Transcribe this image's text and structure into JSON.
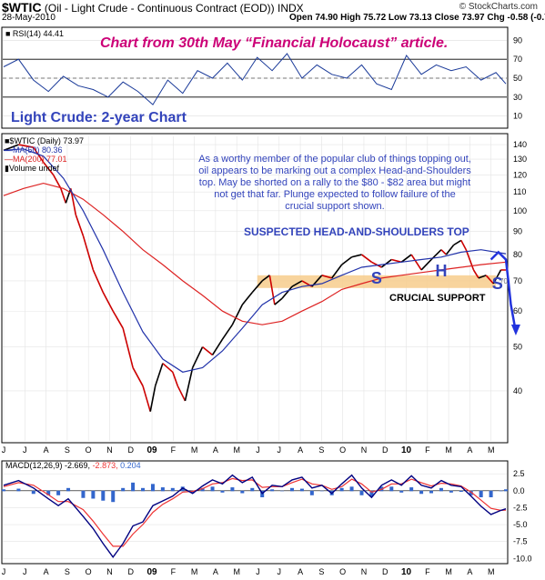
{
  "header": {
    "symbol": "$WTIC",
    "description": "(Oil - Light Crude - Continuous Contract (EOD)) INDX",
    "date": "28-May-2010",
    "ohlc": "Open 74.90 High 75.72 Low 73.13 Close 73.97 Chg -0.58 (-0.78%)",
    "brand": "© StockCharts.com"
  },
  "banner": "Chart from 30th May “Financial Holocaust” article.",
  "subtitle": "Light Crude: 2-year Chart",
  "commentary": [
    "As a worthy member of the popular club of things topping out,",
    "oil appears to be marking out a complex Head-and-Shoulders",
    "top. May be shorted on a rally to the $80 - $82 area but might",
    "not get that far. Plunge expected to follow failure of the",
    "crucial support shown."
  ],
  "pattern_label": "SUSPECTED HEAD-AND-SHOULDERS TOP",
  "support_label": "CRUCIAL SUPPORT",
  "hs_labels": [
    "S",
    "H",
    "S"
  ],
  "support_tag": "70",
  "colors": {
    "banner": "#cc0077",
    "annotation": "#3344bb",
    "price_up": "#000000",
    "price_down": "#cc0000",
    "ma50": "#2233aa",
    "ma200": "#dd2222",
    "support_band": "#f7cc8c",
    "arrow": "#2233dd",
    "macd_line": "#000080",
    "signal_line": "#ee3333",
    "histogram": "#3366cc"
  },
  "chart_data": [
    {
      "type": "line",
      "name": "rsi",
      "legend": "RSI(14) 44.41",
      "ylim": [
        0,
        100
      ],
      "yticks": [
        10,
        30,
        50,
        70,
        90
      ],
      "reference_lines": [
        30,
        70
      ],
      "points": [
        [
          0,
          62
        ],
        [
          3,
          70
        ],
        [
          6,
          48
        ],
        [
          9,
          36
        ],
        [
          12,
          52
        ],
        [
          15,
          42
        ],
        [
          18,
          38
        ],
        [
          21,
          30
        ],
        [
          24,
          46
        ],
        [
          27,
          36
        ],
        [
          30,
          22
        ],
        [
          33,
          48
        ],
        [
          36,
          34
        ],
        [
          39,
          58
        ],
        [
          42,
          50
        ],
        [
          45,
          66
        ],
        [
          48,
          48
        ],
        [
          51,
          72
        ],
        [
          54,
          58
        ],
        [
          57,
          76
        ],
        [
          60,
          50
        ],
        [
          63,
          64
        ],
        [
          66,
          54
        ],
        [
          69,
          50
        ],
        [
          72,
          64
        ],
        [
          75,
          44
        ],
        [
          78,
          38
        ],
        [
          81,
          74
        ],
        [
          84,
          54
        ],
        [
          87,
          64
        ],
        [
          90,
          58
        ],
        [
          93,
          62
        ],
        [
          96,
          48
        ],
        [
          99,
          56
        ],
        [
          101,
          44
        ]
      ]
    },
    {
      "type": "line",
      "name": "price",
      "legend": [
        "$WTIC (Daily) 73.97",
        "MA(50) 80.36",
        "MA(200) 77.01",
        "Volume undef"
      ],
      "ylabel": "",
      "ylim": [
        31,
        146
      ],
      "log_scale": true,
      "yticks": [
        40,
        50,
        60,
        70,
        80,
        90,
        100,
        110,
        120,
        130,
        140
      ],
      "xticks": [
        "J",
        "J",
        "A",
        "S",
        "O",
        "N",
        "D",
        "09",
        "F",
        "M",
        "A",
        "M",
        "J",
        "J",
        "A",
        "S",
        "O",
        "N",
        "D",
        "10",
        "F",
        "M",
        "A",
        "M"
      ],
      "series": [
        {
          "name": "$WTIC (Daily) 73.97",
          "points": [
            [
              0,
              136
            ],
            [
              3,
              140
            ],
            [
              6,
              138
            ],
            [
              8,
              128
            ],
            [
              10,
              120
            ],
            [
              11.5,
              112
            ],
            [
              12.5,
              104
            ],
            [
              13.5,
              112
            ],
            [
              14.5,
              98
            ],
            [
              16,
              88
            ],
            [
              18,
              74
            ],
            [
              20,
              66
            ],
            [
              22,
              60
            ],
            [
              24,
              55
            ],
            [
              26,
              45
            ],
            [
              28,
              41
            ],
            [
              29.5,
              36
            ],
            [
              30.5,
              41
            ],
            [
              32,
              46
            ],
            [
              34,
              44
            ],
            [
              35,
              41
            ],
            [
              36.5,
              38
            ],
            [
              38,
              45
            ],
            [
              40,
              50
            ],
            [
              42,
              48
            ],
            [
              44,
              52
            ],
            [
              46,
              56
            ],
            [
              48,
              62
            ],
            [
              50,
              66
            ],
            [
              52,
              70
            ],
            [
              53.5,
              72
            ],
            [
              54.5,
              62
            ],
            [
              56,
              64
            ],
            [
              58,
              68
            ],
            [
              60,
              70
            ],
            [
              62,
              68
            ],
            [
              64,
              72
            ],
            [
              66,
              71
            ],
            [
              68,
              76
            ],
            [
              70,
              79
            ],
            [
              72,
              80
            ],
            [
              74,
              77
            ],
            [
              76,
              75
            ],
            [
              78,
              78
            ],
            [
              80,
              77
            ],
            [
              82,
              80
            ],
            [
              84,
              74
            ],
            [
              86,
              78
            ],
            [
              88,
              82
            ],
            [
              89,
              80
            ],
            [
              90.5,
              84
            ],
            [
              92,
              86
            ],
            [
              93,
              82
            ],
            [
              94.5,
              74
            ],
            [
              95.5,
              71
            ],
            [
              97,
              72
            ],
            [
              98.5,
              69
            ],
            [
              100,
              74
            ],
            [
              101,
              73.97
            ]
          ]
        },
        {
          "name": "MA(50) 80.36",
          "points": [
            [
              0,
              136
            ],
            [
              4,
              137
            ],
            [
              8,
              132
            ],
            [
              12,
              118
            ],
            [
              16,
              100
            ],
            [
              20,
              82
            ],
            [
              24,
              66
            ],
            [
              28,
              54
            ],
            [
              32,
              47
            ],
            [
              36,
              44
            ],
            [
              40,
              45
            ],
            [
              44,
              49
            ],
            [
              48,
              55
            ],
            [
              52,
              62
            ],
            [
              56,
              66
            ],
            [
              60,
              68
            ],
            [
              64,
              69
            ],
            [
              68,
              72
            ],
            [
              72,
              75
            ],
            [
              76,
              76
            ],
            [
              80,
              77
            ],
            [
              84,
              78
            ],
            [
              88,
              79
            ],
            [
              92,
              81
            ],
            [
              96,
              82
            ],
            [
              101,
              80.36
            ]
          ]
        },
        {
          "name": "MA(200) 77.01",
          "points": [
            [
              0,
              108
            ],
            [
              4,
              112
            ],
            [
              8,
              115
            ],
            [
              12,
              112
            ],
            [
              16,
              106
            ],
            [
              20,
              98
            ],
            [
              24,
              90
            ],
            [
              28,
              82
            ],
            [
              32,
              76
            ],
            [
              36,
              70
            ],
            [
              40,
              65
            ],
            [
              44,
              60
            ],
            [
              48,
              57
            ],
            [
              52,
              56
            ],
            [
              56,
              57
            ],
            [
              60,
              60
            ],
            [
              64,
              63
            ],
            [
              68,
              67
            ],
            [
              72,
              69
            ],
            [
              76,
              71
            ],
            [
              80,
              72
            ],
            [
              84,
              73
            ],
            [
              88,
              74
            ],
            [
              92,
              75
            ],
            [
              96,
              76
            ],
            [
              101,
              77.01
            ]
          ]
        },
        {
          "name": "projection",
          "points": [
            [
              98,
              78
            ],
            [
              99.5,
              81
            ],
            [
              101,
              78
            ],
            [
              101.5,
              70
            ],
            [
              102,
              62
            ],
            [
              103,
              54
            ]
          ]
        }
      ],
      "support_band": [
        67.5,
        72
      ]
    },
    {
      "type": "line",
      "name": "macd",
      "legend": [
        "MACD(12,26,9)",
        "-2.669",
        "-2.873",
        "0.204"
      ],
      "ylim": [
        -10.5,
        4
      ],
      "yticks": [
        2.5,
        0,
        -2.5,
        -5,
        -7.5,
        -10
      ],
      "series": [
        {
          "name": "MACD(12,26,9) -2.669",
          "points": [
            [
              0,
              0.8
            ],
            [
              3,
              1.5
            ],
            [
              6,
              0.4
            ],
            [
              9,
              -1.2
            ],
            [
              11,
              -2.2
            ],
            [
              13,
              -1.2
            ],
            [
              16,
              -3.8
            ],
            [
              18,
              -5.6
            ],
            [
              20,
              -7.8
            ],
            [
              22,
              -9.8
            ],
            [
              24,
              -7.8
            ],
            [
              26,
              -5.2
            ],
            [
              28,
              -4.6
            ],
            [
              30,
              -2.2
            ],
            [
              32,
              -1.5
            ],
            [
              34,
              -0.8
            ],
            [
              36,
              0.4
            ],
            [
              38,
              -0.4
            ],
            [
              40,
              0.7
            ],
            [
              42,
              1.6
            ],
            [
              44,
              1.0
            ],
            [
              46,
              2.3
            ],
            [
              48,
              1.2
            ],
            [
              50,
              2.0
            ],
            [
              52,
              -0.4
            ],
            [
              54,
              0.8
            ],
            [
              56,
              0.6
            ],
            [
              58,
              1.6
            ],
            [
              60,
              2.0
            ],
            [
              62,
              0.4
            ],
            [
              64,
              0.8
            ],
            [
              66,
              -0.4
            ],
            [
              68,
              1.0
            ],
            [
              70,
              2.3
            ],
            [
              72,
              0.4
            ],
            [
              74,
              -1.0
            ],
            [
              76,
              0.8
            ],
            [
              78,
              1.6
            ],
            [
              80,
              0.8
            ],
            [
              82,
              2.2
            ],
            [
              84,
              0.8
            ],
            [
              86,
              0.4
            ],
            [
              88,
              1.5
            ],
            [
              90,
              0.8
            ],
            [
              92,
              0.6
            ],
            [
              94,
              -0.8
            ],
            [
              96,
              -2.3
            ],
            [
              98,
              -3.5
            ],
            [
              100,
              -2.9
            ],
            [
              101,
              -2.669
            ]
          ]
        },
        {
          "name": "-2.873",
          "points": [
            [
              0,
              0.6
            ],
            [
              3,
              1.2
            ],
            [
              6,
              0.8
            ],
            [
              9,
              -0.6
            ],
            [
              11,
              -1.6
            ],
            [
              13,
              -1.6
            ],
            [
              16,
              -2.8
            ],
            [
              18,
              -4.5
            ],
            [
              20,
              -6.4
            ],
            [
              22,
              -8.2
            ],
            [
              24,
              -8.2
            ],
            [
              26,
              -6.4
            ],
            [
              28,
              -5.0
            ],
            [
              30,
              -3.2
            ],
            [
              32,
              -2.0
            ],
            [
              34,
              -1.2
            ],
            [
              36,
              -0.2
            ],
            [
              38,
              -0.1
            ],
            [
              40,
              0.3
            ],
            [
              42,
              1.0
            ],
            [
              44,
              1.2
            ],
            [
              46,
              1.8
            ],
            [
              48,
              1.5
            ],
            [
              50,
              1.6
            ],
            [
              52,
              0.5
            ],
            [
              54,
              0.6
            ],
            [
              56,
              0.6
            ],
            [
              58,
              1.2
            ],
            [
              60,
              1.7
            ],
            [
              62,
              1.0
            ],
            [
              64,
              0.8
            ],
            [
              66,
              0.2
            ],
            [
              68,
              0.6
            ],
            [
              70,
              1.7
            ],
            [
              72,
              1.0
            ],
            [
              74,
              -0.2
            ],
            [
              76,
              0.2
            ],
            [
              78,
              1.0
            ],
            [
              80,
              1.0
            ],
            [
              82,
              1.7
            ],
            [
              84,
              1.2
            ],
            [
              86,
              0.7
            ],
            [
              88,
              1.1
            ],
            [
              90,
              1.0
            ],
            [
              92,
              0.7
            ],
            [
              94,
              -0.2
            ],
            [
              96,
              -1.4
            ],
            [
              98,
              -2.6
            ],
            [
              100,
              -2.9
            ],
            [
              101,
              -2.873
            ]
          ]
        }
      ],
      "histogram_last": 0.204
    }
  ]
}
